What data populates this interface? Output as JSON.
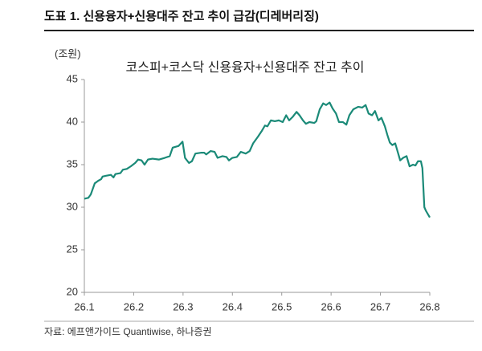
{
  "header": {
    "title": "도표 1. 신용융자+신용대주 잔고 추이 급감(디레버리징)"
  },
  "chart_data": {
    "type": "line",
    "title": "코스피+코스닥 신용융자+신용대주 잔고 추이",
    "y_label": "(조원)",
    "x": [
      26.1,
      26.108,
      26.113,
      26.121,
      26.128,
      26.134,
      26.137,
      26.144,
      26.154,
      26.159,
      26.163,
      26.173,
      26.178,
      26.186,
      26.194,
      26.203,
      26.209,
      26.216,
      26.222,
      26.229,
      26.238,
      26.251,
      26.263,
      26.273,
      26.279,
      26.291,
      26.299,
      26.304,
      26.312,
      26.318,
      26.325,
      26.336,
      26.343,
      26.347,
      26.356,
      26.364,
      26.37,
      26.38,
      26.388,
      26.393,
      26.4,
      26.409,
      26.417,
      26.427,
      26.435,
      26.442,
      26.452,
      26.46,
      26.466,
      26.471,
      26.478,
      26.486,
      26.494,
      26.502,
      26.509,
      26.515,
      26.522,
      26.53,
      26.536,
      26.543,
      26.549,
      26.556,
      26.566,
      26.57,
      26.577,
      26.584,
      26.59,
      26.597,
      26.603,
      26.61,
      26.616,
      26.624,
      26.631,
      26.637,
      26.645,
      26.655,
      26.663,
      26.67,
      26.676,
      26.683,
      26.689,
      26.696,
      26.702,
      26.709,
      26.714,
      26.719,
      26.724,
      26.73,
      26.735,
      26.74,
      26.746,
      26.753,
      26.759,
      26.766,
      26.771,
      26.776,
      26.782,
      26.785,
      26.789,
      26.792,
      26.8
    ],
    "series": [
      {
        "name": "신용융자+신용대주 잔고",
        "color": "#1b8a78",
        "values": [
          31.0,
          31.1,
          31.5,
          32.8,
          33.1,
          33.3,
          33.6,
          33.7,
          33.8,
          33.5,
          33.9,
          34.0,
          34.4,
          34.5,
          34.8,
          35.2,
          35.6,
          35.5,
          35.0,
          35.6,
          35.7,
          35.6,
          35.8,
          36.0,
          37.0,
          37.2,
          37.7,
          35.8,
          35.2,
          35.4,
          36.3,
          36.4,
          36.4,
          36.2,
          36.6,
          36.5,
          35.8,
          36.0,
          35.9,
          35.5,
          35.8,
          35.9,
          36.5,
          36.3,
          36.6,
          37.5,
          38.3,
          39.0,
          39.6,
          39.5,
          40.2,
          40.1,
          40.2,
          40.0,
          40.8,
          40.2,
          40.6,
          41.2,
          40.8,
          40.2,
          39.8,
          40.0,
          39.9,
          40.1,
          41.5,
          42.2,
          42.0,
          42.3,
          41.6,
          41.0,
          40.0,
          40.0,
          39.7,
          40.8,
          41.5,
          41.8,
          41.7,
          42.0,
          41.0,
          40.8,
          41.3,
          40.2,
          40.5,
          39.5,
          38.5,
          37.6,
          37.3,
          37.5,
          36.5,
          35.5,
          35.8,
          36.0,
          34.8,
          35.0,
          34.9,
          35.4,
          35.4,
          34.6,
          30.0,
          29.6,
          28.8
        ]
      }
    ],
    "xlim": [
      26.1,
      26.8
    ],
    "xticks": [
      26.1,
      26.2,
      26.3,
      26.4,
      26.5,
      26.6,
      26.7,
      26.8
    ],
    "ylim": [
      20,
      45
    ],
    "yticks": [
      20,
      25,
      30,
      35,
      40,
      45
    ],
    "legend": false,
    "grid": false
  },
  "source": "자료: 에프앤가이드 Quantiwise, 하나증권"
}
